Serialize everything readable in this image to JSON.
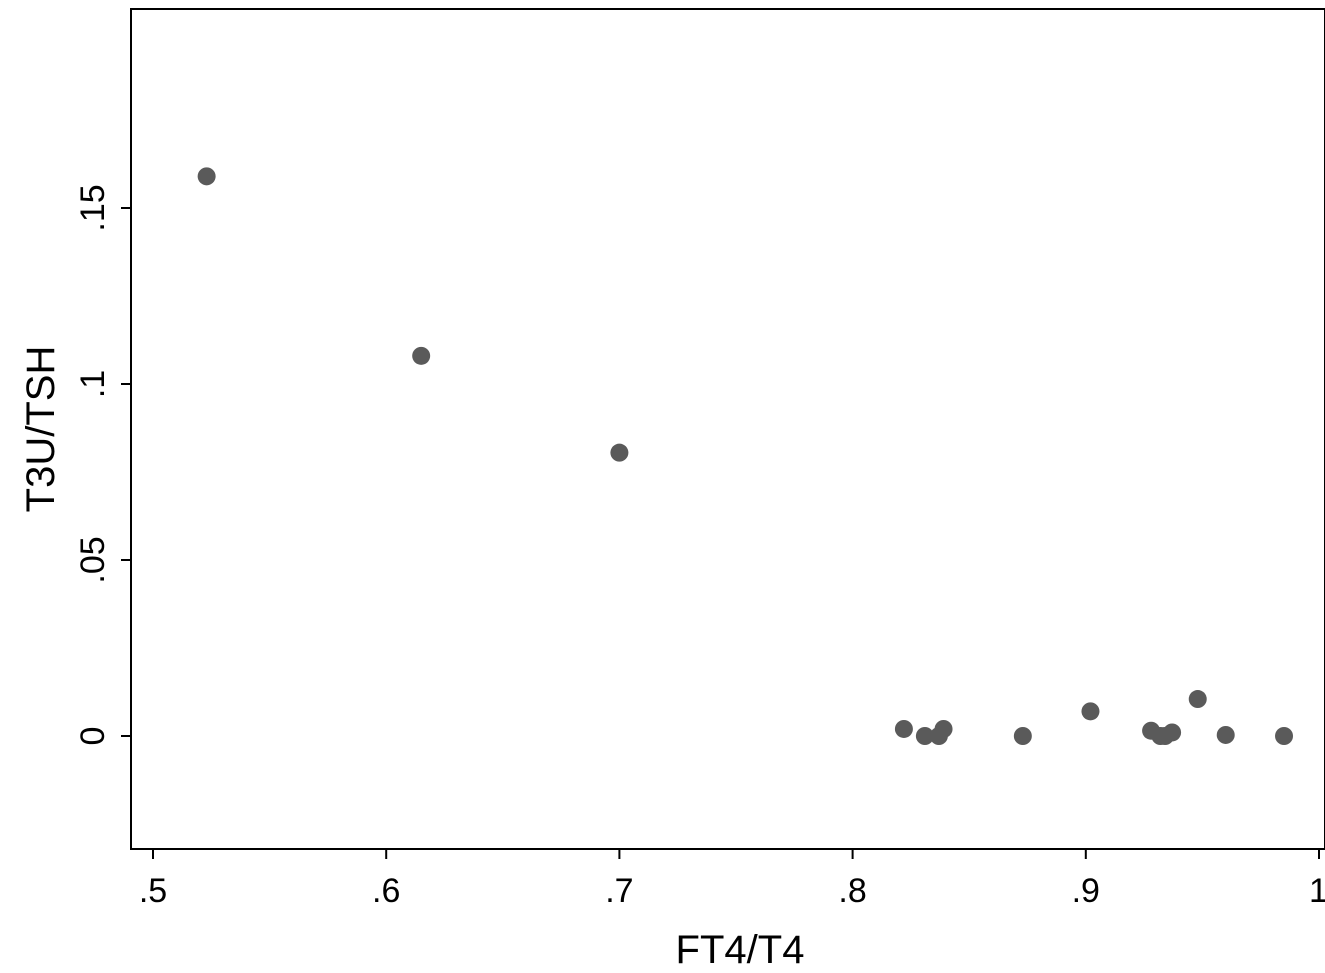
{
  "chart_data": {
    "type": "scatter",
    "title": "",
    "xlabel": "FT4/T4",
    "ylabel": "T3U/TSH",
    "xlim": [
      0.49,
      1.0
    ],
    "ylim": [
      -0.032,
      0.206
    ],
    "x_ticks": [
      0.5,
      0.6,
      0.7,
      0.8,
      0.9,
      1.0
    ],
    "x_tick_labels": [
      ".5",
      ".6",
      ".7",
      ".8",
      ".9",
      "1"
    ],
    "y_ticks": [
      0,
      0.05,
      0.1,
      0.15
    ],
    "y_tick_labels": [
      "0",
      ".05",
      ".1",
      ".15"
    ],
    "grid": false,
    "legend": "none",
    "marker_color": "#5a5a5a",
    "points": [
      {
        "x": 0.523,
        "y": 0.159
      },
      {
        "x": 0.615,
        "y": 0.108
      },
      {
        "x": 0.7,
        "y": 0.0805
      },
      {
        "x": 0.822,
        "y": 0.002
      },
      {
        "x": 0.831,
        "y": 0.0
      },
      {
        "x": 0.837,
        "y": 0.0
      },
      {
        "x": 0.839,
        "y": 0.002
      },
      {
        "x": 0.873,
        "y": 0.0
      },
      {
        "x": 0.902,
        "y": 0.007
      },
      {
        "x": 0.928,
        "y": 0.0015
      },
      {
        "x": 0.932,
        "y": 0.0
      },
      {
        "x": 0.934,
        "y": 0.0
      },
      {
        "x": 0.937,
        "y": 0.001
      },
      {
        "x": 0.948,
        "y": 0.0105
      },
      {
        "x": 0.96,
        "y": 0.0003
      },
      {
        "x": 0.985,
        "y": 0.0
      }
    ]
  }
}
